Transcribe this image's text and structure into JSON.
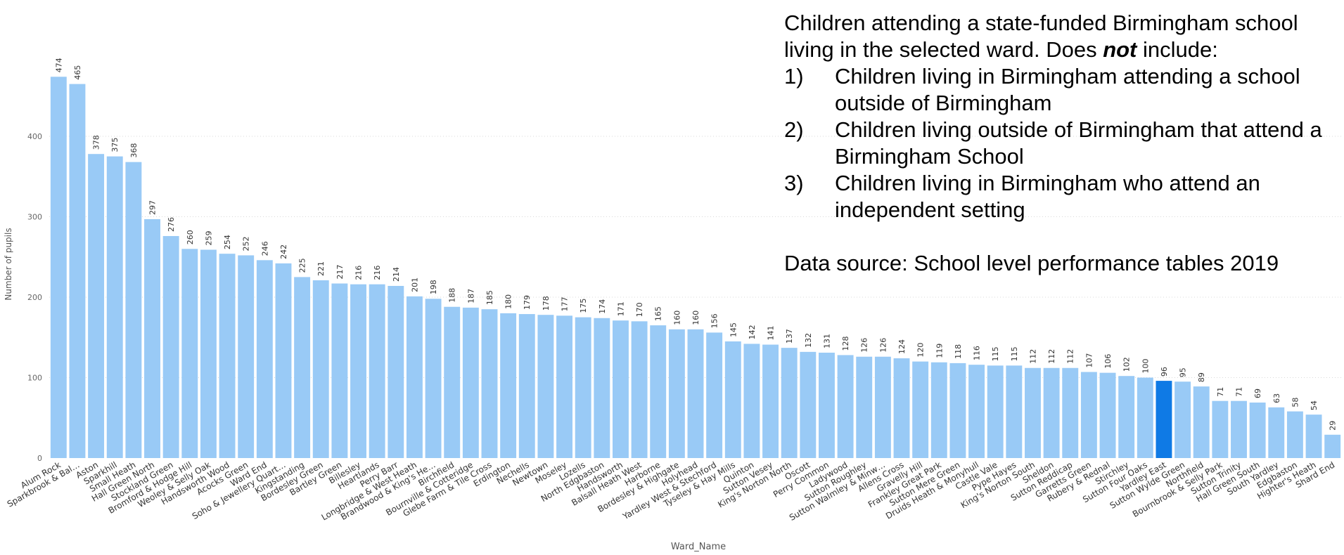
{
  "note": {
    "intro_before": "Children attending a state-funded Birmingham school living in the selected ward. Does ",
    "intro_emph": "not",
    "intro_after": " include:",
    "items": [
      {
        "num": "1)",
        "text": "Children living in Birmingham attending a school outside of Birmingham"
      },
      {
        "num": "2)",
        "text": "Children living outside of Birmingham that attend a Birmingham School"
      },
      {
        "num": "3)",
        "text": "Children living in Birmingham who attend an independent setting"
      }
    ],
    "source": "Data source: School level performance tables 2019"
  },
  "chart_data": {
    "type": "bar",
    "xlabel": "Ward_Name",
    "ylabel": "Number of pupils",
    "ylim": [
      0,
      500
    ],
    "yticks": [
      0,
      100,
      200,
      300,
      400
    ],
    "grid": true,
    "colors": {
      "bar": "#99CAF6",
      "highlight": "#0F7AE5"
    },
    "highlight_category": "Yardley East",
    "categories": [
      "Alum Rock",
      "Sparkbrook & Bal…",
      "Aston",
      "Sparkhill",
      "Small Heath",
      "Hall Green North",
      "Stockland Green",
      "Bromford & Hodge Hill",
      "Weoley & Selly Oak",
      "Handsworth Wood",
      "Acocks Green",
      "Ward End",
      "Soho & Jewellery Quart…",
      "Kingstanding",
      "Bordesley Green",
      "Bartley Green",
      "Billesley",
      "Heartlands",
      "Perry Barr",
      "Longbridge & West Heath",
      "Brandwood & King's He…",
      "Birchfield",
      "Bournville & Cotteridge",
      "Glebe Farm & Tile Cross",
      "Erdington",
      "Nechells",
      "Newtown",
      "Moseley",
      "Lozells",
      "North Edgbaston",
      "Handsworth",
      "Balsall Heath West",
      "Harborne",
      "Bordesley & Highgate",
      "Holyhead",
      "Yardley West & Stechford",
      "Tyseley & Hay Mills",
      "Quinton",
      "Sutton Vesey",
      "King's Norton North",
      "Oscott",
      "Perry Common",
      "Ladywood",
      "Sutton Roughley",
      "Sutton Walmley & Minw…",
      "Allens Cross",
      "Gravelly Hill",
      "Frankley Great Park",
      "Sutton Mere Green",
      "Druids Heath & Monyhull",
      "Castle Vale",
      "Pype Hayes",
      "King's Norton South",
      "Sheldon",
      "Sutton Reddicap",
      "Garretts Green",
      "Rubery & Rednal",
      "Stirchley",
      "Sutton Four Oaks",
      "Yardley East",
      "Sutton Wylde Green",
      "Northfield",
      "Bournbrook & Selly Park",
      "Sutton Trinity",
      "Hall Green South",
      "South Yardley",
      "Edgbaston",
      "Highter's Heath",
      "Shard End"
    ],
    "values": [
      474,
      465,
      378,
      375,
      368,
      297,
      276,
      260,
      259,
      254,
      252,
      246,
      242,
      225,
      221,
      217,
      216,
      216,
      214,
      201,
      198,
      188,
      187,
      185,
      180,
      179,
      178,
      177,
      175,
      174,
      171,
      170,
      165,
      160,
      160,
      156,
      145,
      142,
      141,
      137,
      132,
      131,
      128,
      126,
      126,
      124,
      120,
      119,
      118,
      116,
      115,
      115,
      112,
      112,
      112,
      107,
      106,
      102,
      100,
      96,
      95,
      89,
      71,
      71,
      69,
      63,
      58,
      54,
      29
    ]
  }
}
